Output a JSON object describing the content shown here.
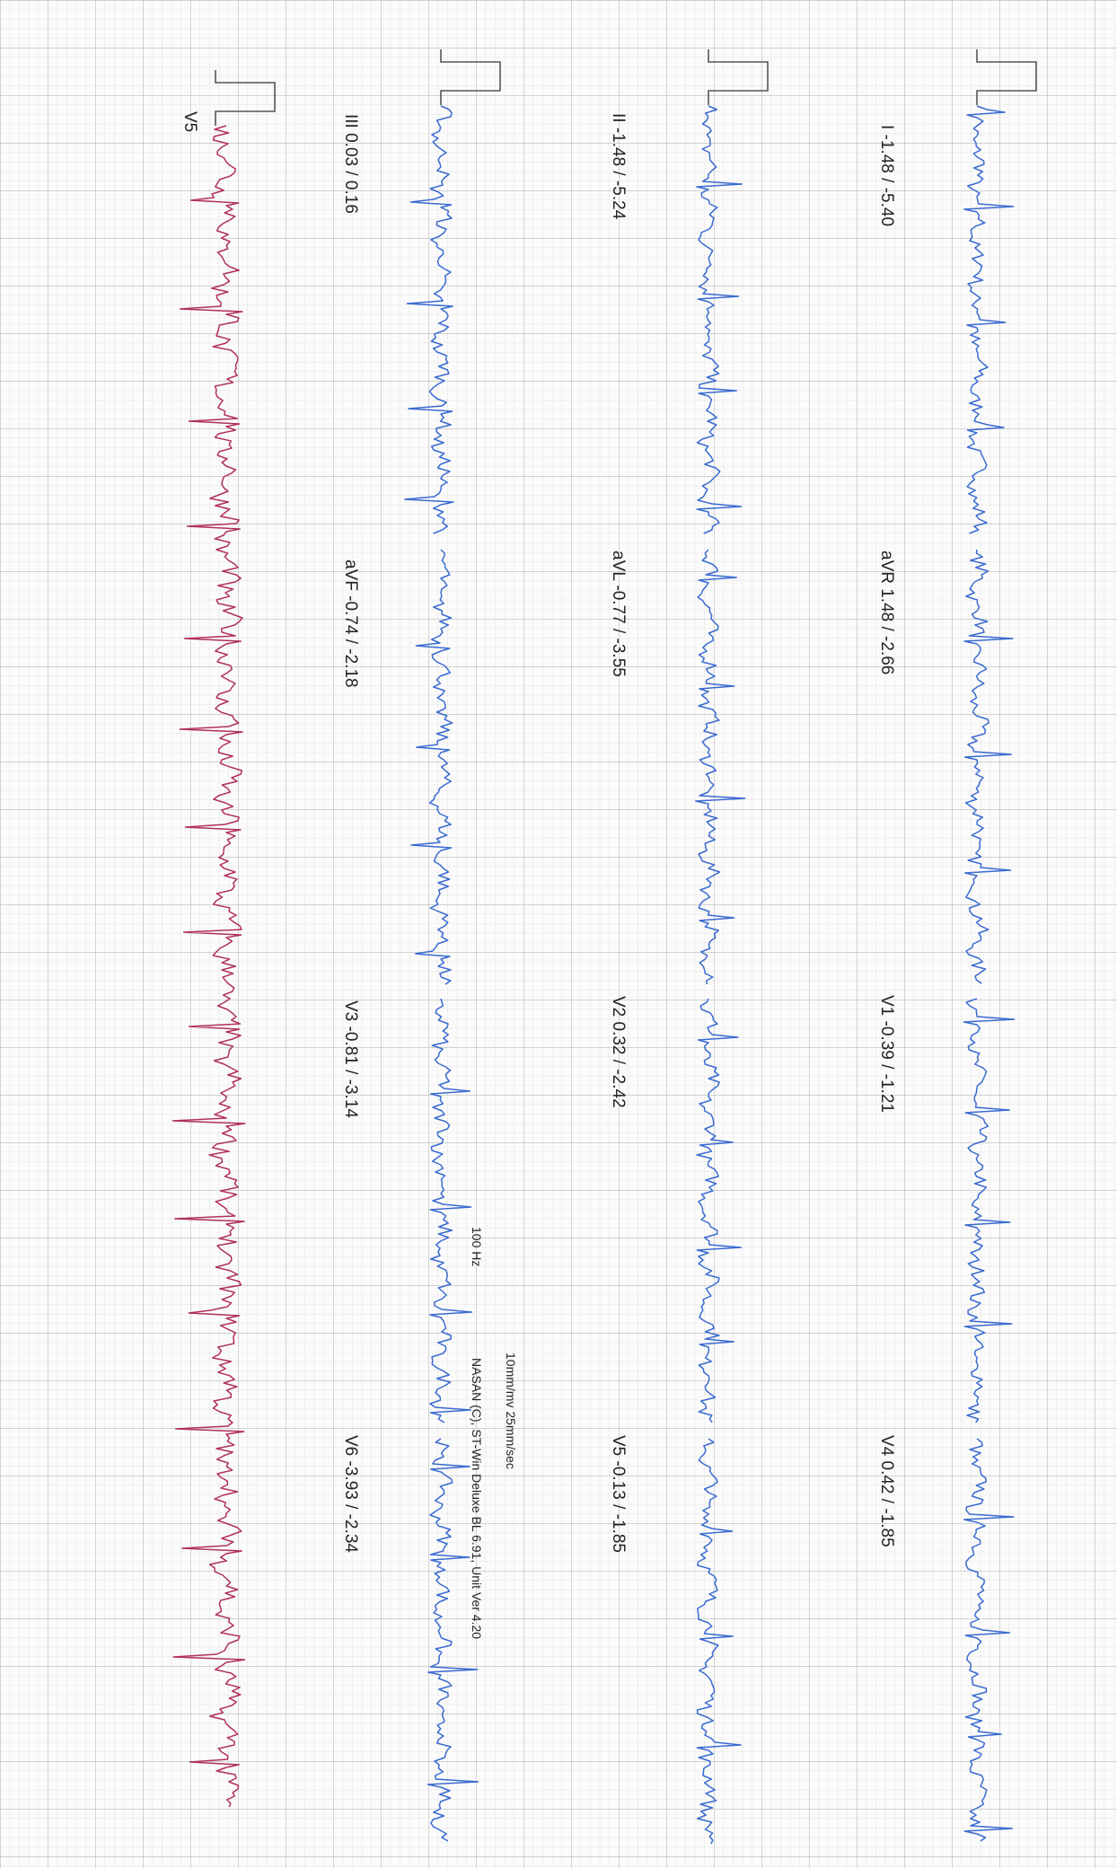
{
  "rows": [
    {
      "leads": [
        "I -1.48 / -5.40",
        "aVR 1.48 / -2.66",
        "V1 -0.39 / -1.21",
        "V4 0.42 / -1.85"
      ]
    },
    {
      "leads": [
        "II -1.48 / -5.24",
        "aVL -0.77 / -3.55",
        "V2 0.32 / -2.42",
        "V5 -0.13 / -1.85"
      ]
    },
    {
      "leads": [
        "III 0.03 / 0.16",
        "aVF -0.74 / -2.18",
        "V3 -0.81 / -3.14",
        "V6 -3.93 / -2.34"
      ]
    }
  ],
  "rhythm": {
    "label": "V5"
  },
  "footer": {
    "settings": "10mm/mv 25mm/sec",
    "filter": "100 Hz",
    "software": "NASAN (C), ST-Win Deluxe BL 6.91, Unit Ver 4.20"
  }
}
